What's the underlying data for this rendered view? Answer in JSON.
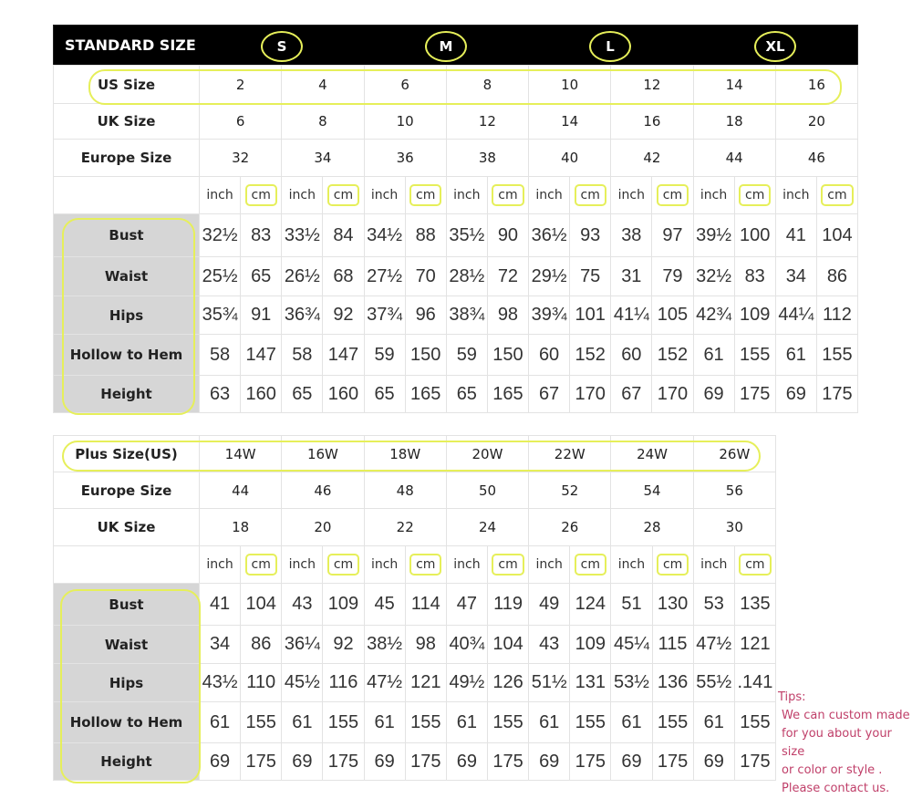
{
  "standard": {
    "title": "STANDARD SIZE",
    "size_letters": [
      "S",
      "M",
      "L",
      "XL"
    ],
    "rows": [
      {
        "label": "US Size",
        "values": [
          "2",
          "4",
          "6",
          "8",
          "10",
          "12",
          "14",
          "16"
        ]
      },
      {
        "label": "UK Size",
        "values": [
          "6",
          "8",
          "10",
          "12",
          "14",
          "16",
          "18",
          "20"
        ]
      },
      {
        "label": "Europe Size",
        "values": [
          "32",
          "34",
          "36",
          "38",
          "40",
          "42",
          "44",
          "46"
        ]
      }
    ],
    "units": [
      "inch",
      "cm"
    ],
    "measurements": [
      {
        "label": "Bust",
        "values": [
          "32½",
          "83",
          "33½",
          "84",
          "34½",
          "88",
          "35½",
          "90",
          "36½",
          "93",
          "38",
          "97",
          "39½",
          "100",
          "41",
          "104"
        ]
      },
      {
        "label": "Waist",
        "values": [
          "25½",
          "65",
          "26½",
          "68",
          "27½",
          "70",
          "28½",
          "72",
          "29½",
          "75",
          "31",
          "79",
          "32½",
          "83",
          "34",
          "86"
        ]
      },
      {
        "label": "Hips",
        "values": [
          "35¾",
          "91",
          "36¾",
          "92",
          "37¾",
          "96",
          "38¾",
          "98",
          "39¾",
          "101",
          "41¼",
          "105",
          "42¾",
          "109",
          "44¼",
          "112"
        ]
      },
      {
        "label": "Hollow to Hem",
        "values": [
          "58",
          "147",
          "58",
          "147",
          "59",
          "150",
          "59",
          "150",
          "60",
          "152",
          "60",
          "152",
          "61",
          "155",
          "61",
          "155"
        ]
      },
      {
        "label": "Height",
        "values": [
          "63",
          "160",
          "65",
          "160",
          "65",
          "165",
          "65",
          "165",
          "67",
          "170",
          "67",
          "170",
          "69",
          "175",
          "69",
          "175"
        ]
      }
    ]
  },
  "plus": {
    "rows": [
      {
        "label": "Plus Size(US)",
        "values": [
          "14W",
          "16W",
          "18W",
          "20W",
          "22W",
          "24W",
          "26W"
        ]
      },
      {
        "label": "Europe Size",
        "values": [
          "44",
          "46",
          "48",
          "50",
          "52",
          "54",
          "56"
        ]
      },
      {
        "label": "UK Size",
        "values": [
          "18",
          "20",
          "22",
          "24",
          "26",
          "28",
          "30"
        ]
      }
    ],
    "units": [
      "inch",
      "cm"
    ],
    "measurements": [
      {
        "label": "Bust",
        "values": [
          "41",
          "104",
          "43",
          "109",
          "45",
          "114",
          "47",
          "119",
          "49",
          "124",
          "51",
          "130",
          "53",
          "135"
        ]
      },
      {
        "label": "Waist",
        "values": [
          "34",
          "86",
          "36¼",
          "92",
          "38½",
          "98",
          "40¾",
          "104",
          "43",
          "109",
          "45¼",
          "115",
          "47½",
          "121"
        ]
      },
      {
        "label": "Hips",
        "values": [
          "43½",
          "110",
          "45½",
          "116",
          "47½",
          "121",
          "49½",
          "126",
          "51½",
          "131",
          "53½",
          "136",
          "55½",
          ".141"
        ]
      },
      {
        "label": "Hollow to Hem",
        "values": [
          "61",
          "155",
          "61",
          "155",
          "61",
          "155",
          "61",
          "155",
          "61",
          "155",
          "61",
          "155",
          "61",
          "155"
        ]
      },
      {
        "label": "Height",
        "values": [
          "69",
          "175",
          "69",
          "175",
          "69",
          "175",
          "69",
          "175",
          "69",
          "175",
          "69",
          "175",
          "69",
          "175"
        ]
      }
    ]
  },
  "tips": {
    "title": "Tips:",
    "lines": [
      "We can custom made",
      "for you about your size",
      "or color or style .",
      "Please contact us."
    ]
  },
  "colors": {
    "highlight": "#e6ef5a",
    "label_bg": "#d6d6d6",
    "tips_text": "#c0406a"
  }
}
